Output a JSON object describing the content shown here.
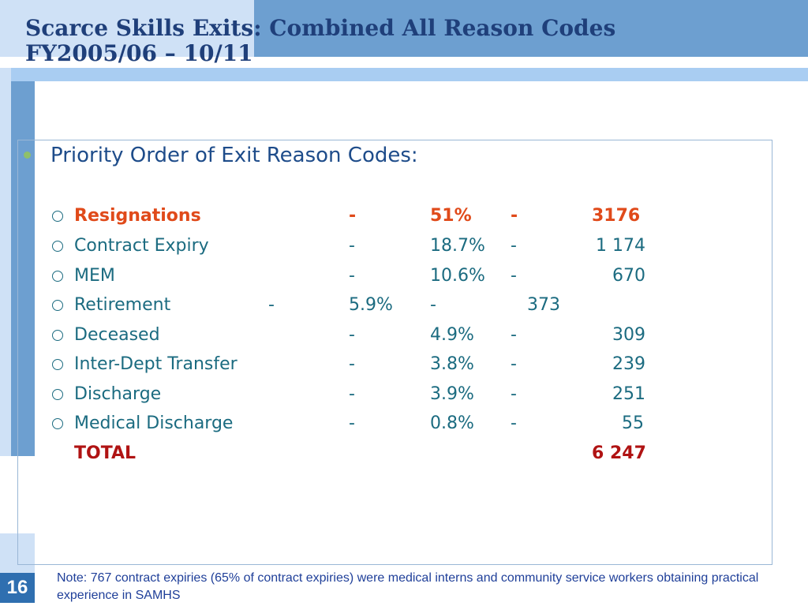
{
  "slide": {
    "title_line1": "Scarce Skills Exits:  Combined All Reason Codes",
    "title_line2": "FY2005/06 – 10/11",
    "heading": "Priority Order of Exit Reason Codes:",
    "page_number": "16",
    "note": "Note:  767 contract expiries (65% of contract expiries) were medical interns and community service workers obtaining practical experience in SAMHS"
  },
  "rows": [
    {
      "label": "Resignations",
      "dash1": "-",
      "pct": "51%",
      "dash2": "-",
      "count": "3176"
    },
    {
      "label": "Contract Expiry",
      "dash1": "-",
      "pct": "18.7%",
      "dash2": "-",
      "count": "1 174"
    },
    {
      "label": "MEM",
      "dash1": "-",
      "pct": "10.6%",
      "dash2": "-",
      "count": "670"
    },
    {
      "label": "Retirement",
      "dash1": "-",
      "pct": "5.9%",
      "dash2": "-",
      "count": "373"
    },
    {
      "label": "Deceased",
      "dash1": "-",
      "pct": "4.9%",
      "dash2": "-",
      "count": "309"
    },
    {
      "label": "Inter-Dept Transfer",
      "dash1": "-",
      "pct": "3.8%",
      "dash2": "-",
      "count": "239"
    },
    {
      "label": "Discharge",
      "dash1": "-",
      "pct": "3.9%",
      "dash2": "-",
      "count": "251"
    },
    {
      "label": "Medical Discharge",
      "dash1": "-",
      "pct": "0.8%",
      "dash2": "-",
      "count": "55"
    }
  ],
  "total": {
    "label": "TOTAL",
    "value": "6 247"
  },
  "colors": {
    "accent": "#2f6fb0",
    "highlight": "#e04a1a",
    "total": "#b01313",
    "text": "#1b6b80"
  }
}
